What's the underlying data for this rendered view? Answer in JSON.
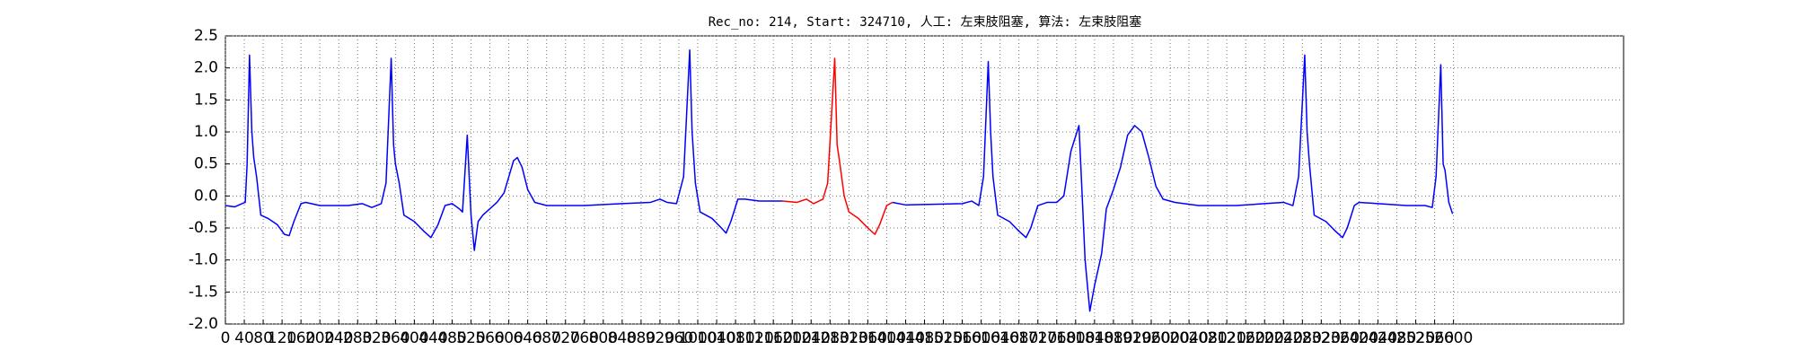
{
  "chart_data": {
    "type": "line",
    "title": "Rec_no: 214, Start: 324710, 人工: 左束肢阻塞, 算法: 左束肢阻塞",
    "grid": true,
    "xlim": [
      0,
      2960
    ],
    "ylim": [
      -2,
      2.5
    ],
    "xticks": [
      0,
      40,
      80,
      120,
      160,
      200,
      240,
      280,
      320,
      360,
      400,
      440,
      480,
      520,
      560,
      600,
      640,
      680,
      720,
      760,
      800,
      840,
      880,
      920,
      960,
      1000,
      1040,
      1080,
      1120,
      1160,
      1200,
      1240,
      1280,
      1320,
      1360,
      1400,
      1440,
      1480,
      1520,
      1560,
      1600,
      1640,
      1680,
      1720,
      1760,
      1800,
      1840,
      1880,
      1920,
      1960,
      2000,
      2040,
      2080,
      2120,
      2160,
      2200,
      2240,
      2280,
      2320,
      2360,
      2400,
      2440,
      2480,
      2520,
      2560,
      2600
    ],
    "yticks": [
      {
        "value": -2,
        "label": "-2.0"
      },
      -1.5,
      {
        "value": -1,
        "label": "-1.0"
      },
      -0.5,
      {
        "value": 0,
        "label": "0.0"
      },
      0.5,
      {
        "value": 1,
        "label": "1.0"
      },
      1.5,
      {
        "value": 2,
        "label": "2.0"
      },
      2.5
    ],
    "x": [
      0,
      20,
      35,
      42,
      46,
      51,
      56,
      60,
      66,
      75,
      90,
      110,
      125,
      135,
      145,
      160,
      170,
      200,
      260,
      290,
      310,
      330,
      340,
      351,
      356,
      360,
      368,
      378,
      400,
      420,
      435,
      450,
      465,
      480,
      495,
      502,
      512,
      520,
      527,
      535,
      545,
      560,
      575,
      590,
      600,
      610,
      618,
      628,
      640,
      655,
      680,
      760,
      840,
      900,
      920,
      935,
      955,
      970,
      983,
      988,
      995,
      1005,
      1030,
      1050,
      1060,
      1070,
      1085,
      1100,
      1130,
      1180,
      1210,
      1230,
      1245,
      1265,
      1275,
      1290,
      1295,
      1300,
      1310,
      1320,
      1340,
      1360,
      1375,
      1385,
      1400,
      1412,
      1440,
      1500,
      1560,
      1580,
      1595,
      1605,
      1615,
      1620,
      1625,
      1635,
      1660,
      1680,
      1695,
      1705,
      1720,
      1740,
      1760,
      1775,
      1790,
      1807,
      1812,
      1820,
      1830,
      1840,
      1855,
      1865,
      1880,
      1895,
      1910,
      1925,
      1940,
      1955,
      1970,
      1985,
      2010,
      2060,
      2140,
      2200,
      2240,
      2260,
      2272,
      2285,
      2290,
      2295,
      2305,
      2330,
      2350,
      2365,
      2375,
      2390,
      2400,
      2440,
      2500,
      2540,
      2555,
      2563,
      2573,
      2578,
      2582,
      2590,
      2598
    ],
    "series": [
      {
        "color": "#0000ff",
        "values": [
          -0.15,
          -0.17,
          -0.12,
          -0.1,
          0.5,
          2.2,
          1.0,
          0.6,
          0.3,
          -0.3,
          -0.35,
          -0.45,
          -0.6,
          -0.62,
          -0.4,
          -0.12,
          -0.1,
          -0.15,
          -0.15,
          -0.12,
          -0.18,
          -0.12,
          0.2,
          2.15,
          0.8,
          0.5,
          0.2,
          -0.3,
          -0.4,
          -0.55,
          -0.65,
          -0.45,
          -0.15,
          -0.12,
          -0.2,
          -0.25,
          0.95,
          -0.3,
          -0.85,
          -0.4,
          -0.3,
          -0.2,
          -0.1,
          0.05,
          0.3,
          0.55,
          0.6,
          0.45,
          0.1,
          -0.1,
          -0.15,
          -0.15,
          -0.12,
          -0.1,
          -0.05,
          -0.1,
          -0.12,
          0.3,
          2.28,
          1.0,
          0.2,
          -0.25,
          -0.35,
          -0.5,
          -0.58,
          -0.4,
          -0.05,
          -0.05,
          -0.08,
          -0.08,
          null,
          null,
          null,
          null,
          null,
          null,
          null,
          null,
          null,
          null,
          null,
          null,
          null,
          null,
          null,
          -0.1,
          -0.14,
          -0.13,
          -0.12,
          -0.08,
          -0.15,
          0.3,
          2.1,
          1.0,
          0.3,
          -0.3,
          -0.4,
          -0.55,
          -0.65,
          -0.5,
          -0.15,
          -0.1,
          -0.1,
          0.0,
          0.7,
          1.1,
          0.3,
          -1.0,
          -1.8,
          -1.4,
          -0.9,
          -0.2,
          0.1,
          0.45,
          0.95,
          1.1,
          1.0,
          0.6,
          0.15,
          -0.05,
          -0.1,
          -0.15,
          -0.15,
          -0.12,
          -0.1,
          -0.15,
          0.3,
          2.2,
          1.0,
          0.5,
          -0.3,
          -0.4,
          -0.55,
          -0.65,
          -0.5,
          -0.15,
          -0.1,
          -0.12,
          -0.15,
          -0.15,
          -0.18,
          0.3,
          2.05,
          0.5,
          0.4,
          -0.1,
          -0.28
        ]
      },
      {
        "color": "#ff0000",
        "values": [
          null,
          null,
          null,
          null,
          null,
          null,
          null,
          null,
          null,
          null,
          null,
          null,
          null,
          null,
          null,
          null,
          null,
          null,
          null,
          null,
          null,
          null,
          null,
          null,
          null,
          null,
          null,
          null,
          null,
          null,
          null,
          null,
          null,
          null,
          null,
          null,
          null,
          null,
          null,
          null,
          null,
          null,
          null,
          null,
          null,
          null,
          null,
          null,
          null,
          null,
          null,
          null,
          null,
          null,
          null,
          null,
          null,
          null,
          null,
          null,
          null,
          null,
          null,
          null,
          null,
          null,
          null,
          null,
          null,
          -0.08,
          -0.1,
          -0.05,
          -0.12,
          -0.05,
          0.2,
          2.15,
          0.8,
          0.55,
          0.0,
          -0.25,
          -0.35,
          -0.5,
          -0.6,
          -0.45,
          -0.15,
          -0.1,
          null,
          null,
          null,
          null,
          null,
          null,
          null,
          null,
          null,
          null,
          null,
          null,
          null,
          null,
          null,
          null,
          null,
          null,
          null,
          null,
          null,
          null,
          null,
          null,
          null,
          null,
          null,
          null,
          null,
          null,
          null,
          null,
          null,
          null,
          null,
          null,
          null,
          null,
          null,
          null,
          null,
          null,
          null,
          null,
          null,
          null,
          null,
          null,
          null,
          null,
          null,
          null,
          null,
          null,
          null,
          null,
          null,
          null,
          null,
          null,
          null
        ]
      }
    ]
  }
}
